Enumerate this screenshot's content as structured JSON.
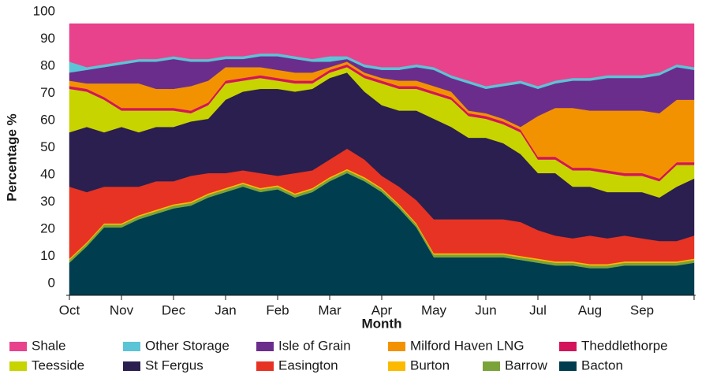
{
  "chart_data": {
    "type": "stacked_area",
    "x_label": "Month",
    "y_label": "Percentage %",
    "categories": [
      "Oct",
      null,
      null,
      "Nov",
      null,
      null,
      "Dec",
      null,
      null,
      "Jan",
      null,
      null,
      "Feb",
      null,
      null,
      "Mar",
      null,
      null,
      "Apr",
      null,
      null,
      "May",
      null,
      null,
      "Jun",
      null,
      null,
      "Jul",
      null,
      null,
      "Aug",
      null,
      null,
      "Sep",
      null,
      null,
      null
    ],
    "ylim": [
      0,
      100
    ],
    "yticks": [
      0,
      10,
      20,
      30,
      40,
      50,
      60,
      70,
      80,
      90,
      100
    ],
    "grid": false,
    "legend": "bottom",
    "series": [
      {
        "name": "Shale",
        "color": "#e8428c",
        "values": [
          14,
          16,
          15,
          14,
          13,
          13,
          12,
          13,
          13,
          12,
          12,
          11,
          11,
          12,
          13,
          12,
          12,
          15,
          16,
          16,
          15,
          16,
          19,
          21,
          23,
          22,
          21,
          23,
          21,
          20,
          20,
          19,
          19,
          19,
          18,
          15,
          16
        ]
      },
      {
        "name": "Other Storage",
        "color": "#5bc4d6",
        "values": [
          4,
          1,
          1,
          1,
          1,
          1,
          1,
          1,
          1,
          1,
          1,
          1,
          1,
          1,
          1,
          2,
          1,
          1,
          1,
          1,
          1,
          1,
          1,
          1,
          1,
          1,
          1,
          1,
          1,
          1,
          1,
          1,
          1,
          1,
          1,
          1,
          1
        ]
      },
      {
        "name": "Isle of Grain",
        "color": "#6b2d8c",
        "values": [
          3,
          5,
          6,
          7,
          8,
          10,
          11,
          9,
          7,
          3,
          3,
          4,
          5,
          5,
          4,
          2,
          1,
          2,
          3,
          4,
          5,
          6,
          5,
          10,
          9,
          12,
          16,
          10,
          9,
          10,
          11,
          12,
          12,
          12,
          14,
          12,
          11
        ]
      },
      {
        "name": "Milford Haven LNG",
        "color": "#f39200",
        "values": [
          2,
          2,
          5,
          9,
          9,
          7,
          7,
          9,
          8,
          5,
          4,
          3,
          3,
          3,
          3,
          1,
          1,
          1,
          1,
          2,
          2,
          2,
          2,
          1,
          1,
          1,
          1,
          15,
          18,
          22,
          21,
          22,
          23,
          23,
          24,
          23,
          23
        ]
      },
      {
        "name": "Theddlethorpe",
        "color": "#d4145a",
        "values": [
          1,
          1,
          1,
          1,
          1,
          1,
          1,
          1,
          1,
          1,
          1,
          1,
          1,
          1,
          1,
          1,
          1,
          1,
          1,
          1,
          1,
          1,
          1,
          1,
          1,
          1,
          1,
          1,
          1,
          1,
          1,
          1,
          1,
          1,
          1,
          1,
          1
        ]
      },
      {
        "name": "Teesside",
        "color": "#c8d400",
        "values": [
          16,
          13,
          12,
          6,
          8,
          6,
          6,
          3,
          5,
          6,
          4,
          4,
          3,
          3,
          2,
          2,
          2,
          5,
          8,
          8,
          8,
          9,
          10,
          8,
          7,
          7,
          8,
          5,
          5,
          6,
          6,
          7,
          6,
          6,
          6,
          8,
          5
        ]
      },
      {
        "name": "St Fergus",
        "color": "#2a1f4f",
        "values": [
          20,
          24,
          20,
          22,
          20,
          20,
          20,
          20,
          20,
          27,
          29,
          31,
          32,
          30,
          30,
          30,
          28,
          25,
          26,
          28,
          33,
          37,
          34,
          30,
          30,
          28,
          25,
          21,
          23,
          19,
          18,
          17,
          16,
          17,
          16,
          20,
          21
        ]
      },
      {
        "name": "Easington",
        "color": "#e63323",
        "values": [
          26.5,
          18.5,
          13.5,
          13.5,
          10.5,
          10.5,
          8.5,
          9.5,
          7.5,
          5.5,
          4.5,
          5.5,
          3.5,
          7.5,
          6.5,
          6.5,
          7.5,
          6.5,
          4.5,
          6.5,
          8.5,
          12.5,
          12.5,
          12.5,
          12.5,
          12.5,
          12.5,
          10.5,
          9.5,
          8.5,
          10.5,
          9.5,
          9.5,
          8.5,
          7.5,
          7.5,
          8.5
        ]
      },
      {
        "name": "Burton",
        "color": "#fbba00",
        "values": [
          0.5,
          0.5,
          0.5,
          0.5,
          0.5,
          0.5,
          0.5,
          0.5,
          0.5,
          0.5,
          0.5,
          0.5,
          0.5,
          0.5,
          0.5,
          0.5,
          0.5,
          0.5,
          0.5,
          0.5,
          0.5,
          0.5,
          0.5,
          0.5,
          0.5,
          0.5,
          0.5,
          0.5,
          0.5,
          0.5,
          0.5,
          0.5,
          0.5,
          0.5,
          0.5,
          0.5,
          0.5
        ]
      },
      {
        "name": "Barrow",
        "color": "#7aa33a",
        "values": [
          1,
          1,
          1,
          1,
          1,
          1,
          1,
          1,
          1,
          1,
          1,
          1,
          1,
          1,
          1,
          1,
          1,
          1,
          1,
          1,
          1,
          1,
          1,
          1,
          1,
          1,
          1,
          1,
          1,
          1,
          1,
          1,
          1,
          1,
          1,
          1,
          1
        ]
      },
      {
        "name": "Bacton",
        "color": "#003d4f",
        "values": [
          12,
          18,
          25,
          25,
          28,
          30,
          32,
          33,
          36,
          38,
          40,
          38,
          39,
          36,
          38,
          42,
          45,
          42,
          38,
          32,
          25,
          14,
          14,
          14,
          14,
          14,
          13,
          12,
          11,
          11,
          10,
          10,
          11,
          11,
          11,
          11,
          12
        ]
      }
    ]
  }
}
